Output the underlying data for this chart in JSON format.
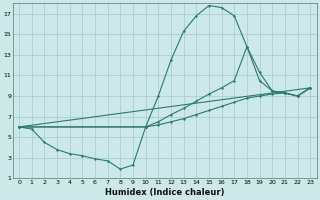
{
  "xlabel": "Humidex (Indice chaleur)",
  "bg_color": "#cce8e8",
  "grid_color": "#aacfcf",
  "line_color": "#2a7a6a",
  "xlim": [
    -0.5,
    23.5
  ],
  "ylim": [
    1,
    18
  ],
  "xticks": [
    0,
    1,
    2,
    3,
    4,
    5,
    6,
    7,
    8,
    9,
    10,
    11,
    12,
    13,
    14,
    15,
    16,
    17,
    18,
    19,
    20,
    21,
    22,
    23
  ],
  "yticks": [
    1,
    3,
    5,
    7,
    9,
    11,
    13,
    15,
    17
  ],
  "curve1_x": [
    0,
    1,
    2,
    3,
    4,
    5,
    6,
    7,
    8,
    9,
    10,
    11,
    12,
    13,
    14,
    15,
    16,
    17,
    18,
    19,
    20,
    21,
    22,
    23
  ],
  "curve1_y": [
    6.0,
    5.8,
    4.5,
    3.8,
    3.4,
    3.2,
    2.9,
    2.7,
    1.9,
    2.3,
    6.0,
    9.0,
    12.5,
    15.3,
    16.8,
    17.8,
    17.6,
    16.8,
    13.8,
    11.3,
    9.5,
    9.3,
    9.0,
    9.8
  ],
  "curve2_x": [
    0,
    10,
    11,
    12,
    13,
    14,
    15,
    16,
    17,
    18,
    19,
    20,
    21,
    22,
    23
  ],
  "curve2_y": [
    6.0,
    6.0,
    6.5,
    7.2,
    7.8,
    8.5,
    9.2,
    9.8,
    10.5,
    13.8,
    10.5,
    9.5,
    9.3,
    9.0,
    9.8
  ],
  "curve3_x": [
    0,
    23
  ],
  "curve3_y": [
    6.0,
    9.8
  ],
  "curve4_x": [
    0,
    10,
    11,
    12,
    13,
    14,
    15,
    16,
    17,
    18,
    19,
    20,
    21,
    22,
    23
  ],
  "curve4_y": [
    6.0,
    6.0,
    6.2,
    6.5,
    6.8,
    7.2,
    7.6,
    8.0,
    8.4,
    8.8,
    9.0,
    9.2,
    9.3,
    9.0,
    9.8
  ]
}
